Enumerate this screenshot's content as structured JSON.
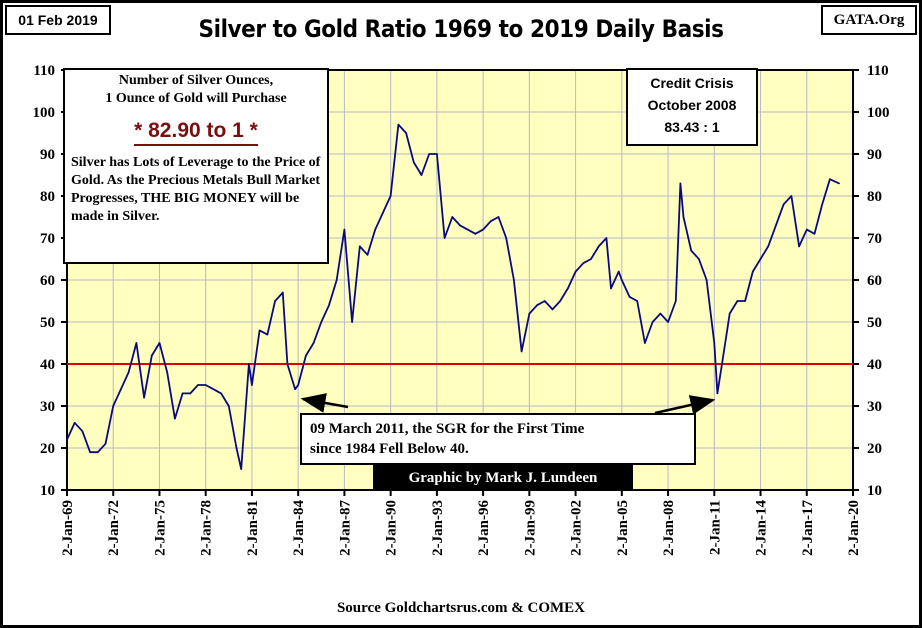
{
  "header": {
    "date": "01 Feb 2019",
    "site": "GATA.Org"
  },
  "chart_data": {
    "type": "line",
    "title": "Silver to Gold Ratio 1969 to 2019 Daily Basis",
    "xlabel": "",
    "ylabel": "",
    "xlim": [
      1969,
      2020
    ],
    "ylim": [
      10,
      110
    ],
    "yticks": [
      "10",
      "20",
      "30",
      "40",
      "50",
      "60",
      "70",
      "80",
      "90",
      "100",
      "110"
    ],
    "xticks": [
      "2-Jan-69",
      "2-Jan-72",
      "2-Jan-75",
      "2-Jan-78",
      "2-Jan-81",
      "2-Jan-84",
      "2-Jan-87",
      "2-Jan-90",
      "2-Jan-93",
      "2-Jan-96",
      "2-Jan-99",
      "2-Jan-02",
      "2-Jan-05",
      "2-Jan-08",
      "2-Jan-11",
      "2-Jan-14",
      "2-Jan-17",
      "2-Jan-20"
    ],
    "grid": true,
    "reference_line": {
      "value": 40,
      "color": "#e00000"
    },
    "series": [
      {
        "name": "Silver to Gold Ratio",
        "color": "#0a0a80",
        "x": [
          1969,
          1969.5,
          1970,
          1970.5,
          1971,
          1971.5,
          1972,
          1972.5,
          1973,
          1973.5,
          1974,
          1974.5,
          1975,
          1975.5,
          1976,
          1976.5,
          1977,
          1977.5,
          1978,
          1978.5,
          1979,
          1979.5,
          1980,
          1980.3,
          1980.8,
          1981,
          1981.5,
          1982,
          1982.5,
          1983,
          1983.3,
          1983.8,
          1984,
          1984.5,
          1985,
          1985.5,
          1986,
          1986.5,
          1987,
          1987.5,
          1988,
          1988.5,
          1989,
          1989.5,
          1990,
          1990.5,
          1991,
          1991.5,
          1992,
          1992.5,
          1993,
          1993.5,
          1994,
          1994.5,
          1995,
          1995.5,
          1996,
          1996.5,
          1997,
          1997.5,
          1998,
          1998.5,
          1999,
          1999.5,
          2000,
          2000.5,
          2001,
          2001.5,
          2002,
          2002.5,
          2003,
          2003.5,
          2004,
          2004.3,
          2004.8,
          2005,
          2005.5,
          2006,
          2006.5,
          2007,
          2007.5,
          2008,
          2008.5,
          2008.8,
          2009,
          2009.5,
          2010,
          2010.5,
          2011,
          2011.2,
          2011.5,
          2012,
          2012.5,
          2013,
          2013.5,
          2014,
          2014.5,
          2015,
          2015.5,
          2016,
          2016.5,
          2017,
          2017.5,
          2018,
          2018.5,
          2019.1
        ],
        "y": [
          22,
          26,
          24,
          19,
          19,
          21,
          30,
          34,
          38,
          45,
          32,
          42,
          45,
          38,
          27,
          33,
          33,
          35,
          35,
          34,
          33,
          30,
          20,
          15,
          40,
          35,
          48,
          47,
          55,
          57,
          40,
          34,
          35,
          42,
          45,
          50,
          54,
          60,
          72,
          50,
          68,
          66,
          72,
          76,
          80,
          97,
          95,
          88,
          85,
          90,
          90,
          70,
          75,
          73,
          72,
          71,
          72,
          74,
          75,
          70,
          60,
          43,
          52,
          54,
          55,
          53,
          55,
          58,
          62,
          64,
          65,
          68,
          70,
          58,
          62,
          60,
          56,
          55,
          45,
          50,
          52,
          50,
          55,
          83,
          75,
          67,
          65,
          60,
          45,
          33,
          40,
          52,
          55,
          55,
          62,
          65,
          68,
          73,
          78,
          80,
          68,
          72,
          71,
          78,
          84,
          83
        ]
      }
    ],
    "annotations": [
      {
        "text": "09 March 2011, the SGR for the First Time since 1984 Fell Below 40."
      },
      {
        "text": "Graphic by Mark J. Lundeen"
      }
    ],
    "source": "Source Goldchartsrus.com & COMEX"
  },
  "info_box": {
    "line1": "Number of Silver Ounces,",
    "line2": "1 Ounce of Gold will Purchase",
    "ratio": "* 82.90 to 1 *",
    "body": "Silver has Lots of Leverage to the Price of Gold.  As the Precious Metals Bull Market Progresses,  THE BIG MONEY will be made in Silver."
  },
  "crisis_box": {
    "line1": "Credit Crisis",
    "line2": "October 2008",
    "line3": "83.43 : 1"
  },
  "note": {
    "line1": "09 March 2011, the SGR for the First Time",
    "line2": "since 1984 Fell Below 40."
  },
  "credit": "Graphic by Mark J. Lundeen",
  "source": "Source Goldchartsrus.com & COMEX"
}
